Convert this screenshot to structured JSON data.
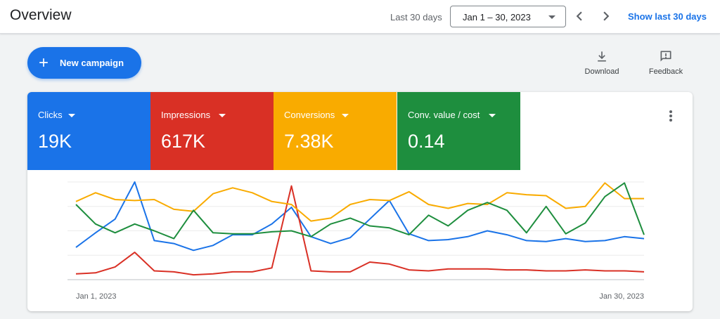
{
  "header": {
    "title": "Overview",
    "range_label": "Last 30 days",
    "date_range": "Jan 1 – 30, 2023",
    "show_last_label": "Show last 30 days"
  },
  "actions": {
    "new_campaign_label": "New campaign",
    "download_label": "Download",
    "feedback_label": "Feedback"
  },
  "metrics": [
    {
      "label": "Clicks",
      "value": "19K",
      "color": "#1a73e8"
    },
    {
      "label": "Impressions",
      "value": "617K",
      "color": "#d93025"
    },
    {
      "label": "Conversions",
      "value": "7.38K",
      "color": "#f9ab00"
    },
    {
      "label": "Conv. value / cost",
      "value": "0.14",
      "color": "#1e8e3e"
    }
  ],
  "chart_data": {
    "type": "line",
    "x": [
      "Jan 1",
      "Jan 2",
      "Jan 3",
      "Jan 4",
      "Jan 5",
      "Jan 6",
      "Jan 7",
      "Jan 8",
      "Jan 9",
      "Jan 10",
      "Jan 11",
      "Jan 12",
      "Jan 13",
      "Jan 14",
      "Jan 15",
      "Jan 16",
      "Jan 17",
      "Jan 18",
      "Jan 19",
      "Jan 20",
      "Jan 21",
      "Jan 22",
      "Jan 23",
      "Jan 24",
      "Jan 25",
      "Jan 26",
      "Jan 27",
      "Jan 28",
      "Jan 29",
      "Jan 30"
    ],
    "x_tick_labels": [
      "Jan 1, 2023",
      "Jan 30, 2023"
    ],
    "grid": true,
    "note": "y-axis is unlabeled; values are relative (0-100 of plot height)",
    "ylim": [
      0,
      100
    ],
    "series": [
      {
        "name": "Clicks",
        "color": "#1a73e8",
        "values": [
          33,
          48,
          62,
          100,
          40,
          37,
          30,
          35,
          46,
          46,
          57,
          74,
          44,
          37,
          43,
          62,
          81,
          47,
          40,
          41,
          44,
          50,
          46,
          40,
          39,
          42,
          39,
          40,
          44,
          42
        ]
      },
      {
        "name": "Impressions",
        "color": "#d93025",
        "values": [
          6,
          7,
          13,
          28,
          9,
          8,
          5,
          6,
          8,
          8,
          12,
          96,
          9,
          8,
          8,
          18,
          16,
          10,
          9,
          11,
          11,
          11,
          10,
          10,
          9,
          9,
          10,
          9,
          9,
          8
        ]
      },
      {
        "name": "Conversions",
        "color": "#f9ab00",
        "values": [
          80,
          89,
          82,
          81,
          82,
          72,
          70,
          88,
          94,
          89,
          80,
          77,
          60,
          63,
          77,
          82,
          81,
          90,
          77,
          73,
          78,
          77,
          89,
          87,
          86,
          73,
          75,
          99,
          83,
          83
        ]
      },
      {
        "name": "Conv. value / cost",
        "color": "#1e8e3e",
        "values": [
          77,
          57,
          48,
          57,
          50,
          42,
          71,
          48,
          47,
          47,
          49,
          50,
          44,
          57,
          63,
          55,
          53,
          46,
          66,
          55,
          71,
          79,
          71,
          48,
          75,
          47,
          58,
          85,
          99,
          46
        ]
      }
    ]
  }
}
